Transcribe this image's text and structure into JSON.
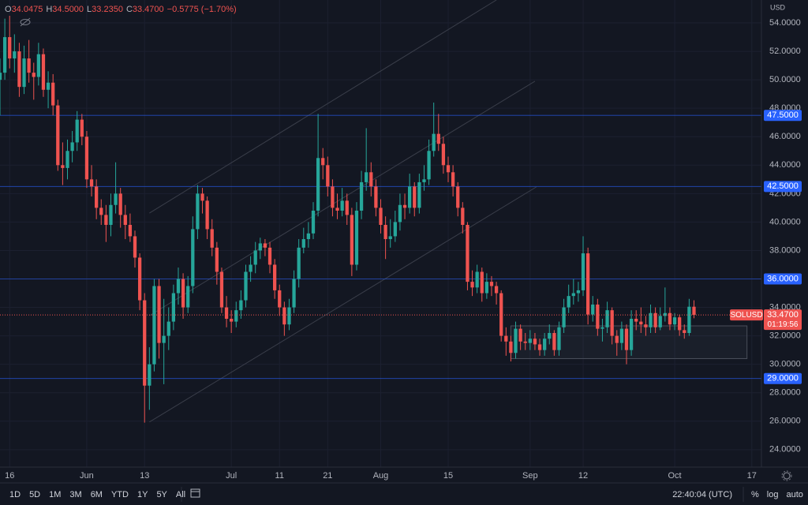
{
  "chart_data": {
    "type": "candlestick",
    "symbol": "SOLUSD",
    "currency": "USD",
    "legend": [
      {
        "key": "O",
        "text": "34.0475"
      },
      {
        "key": "H",
        "text": "34.5000"
      },
      {
        "key": "L",
        "text": "33.2350"
      },
      {
        "key": "C",
        "text": "33.4700"
      }
    ],
    "change_text": "−0.5775 (−1.70%)",
    "up_color": "#26a69a",
    "down_color": "#ef5350",
    "xlim": [
      0,
      158
    ],
    "xticks": [
      {
        "value": 2,
        "label": "16"
      },
      {
        "value": 18,
        "label": "Jun"
      },
      {
        "value": 30,
        "label": "13"
      },
      {
        "value": 48,
        "label": "Jul"
      },
      {
        "value": 58,
        "label": "11"
      },
      {
        "value": 68,
        "label": "21"
      },
      {
        "value": 79,
        "label": "Aug"
      },
      {
        "value": 93,
        "label": "15"
      },
      {
        "value": 110,
        "label": "Sep"
      },
      {
        "value": 121,
        "label": "12"
      },
      {
        "value": 140,
        "label": "Oct"
      },
      {
        "value": 156,
        "label": "17"
      }
    ],
    "ylim": [
      22.77,
      55.61
    ],
    "yticks": [
      {
        "value": 24,
        "label": "24.0000"
      },
      {
        "value": 26,
        "label": "26.0000"
      },
      {
        "value": 28,
        "label": "28.0000"
      },
      {
        "value": 30,
        "label": "30.0000"
      },
      {
        "value": 32,
        "label": "32.0000"
      },
      {
        "value": 34,
        "label": "34.0000"
      },
      {
        "value": 36,
        "label": "36.0000"
      },
      {
        "value": 38,
        "label": "38.0000"
      },
      {
        "value": 40,
        "label": "40.0000"
      },
      {
        "value": 42,
        "label": "42.0000"
      },
      {
        "value": 44,
        "label": "44.0000"
      },
      {
        "value": 46,
        "label": "46.0000"
      },
      {
        "value": 48,
        "label": "48.0000"
      },
      {
        "value": 50,
        "label": "50.0000"
      },
      {
        "value": 52,
        "label": "52.0000"
      },
      {
        "value": 54,
        "label": "54.0000"
      }
    ],
    "grid": true,
    "levels": [
      {
        "value": 47.5,
        "label": "47.5000"
      },
      {
        "value": 42.5,
        "label": "42.5000"
      },
      {
        "value": 36,
        "label": "36.0000"
      },
      {
        "value": 29,
        "label": "29.0000"
      }
    ],
    "last_price": {
      "value": 33.47,
      "label": "33.4700"
    },
    "countdown": "01:19:56",
    "zone": {
      "x": [
        106,
        155
      ],
      "y": [
        30.4,
        32.7
      ]
    },
    "trendlines": [
      {
        "x": [
          31,
          103
        ],
        "y": [
          40.63,
          55.61
        ]
      },
      {
        "x": [
          31,
          111
        ],
        "y": [
          33.42,
          49.9
        ]
      },
      {
        "x": [
          31,
          111.3
        ],
        "y": [
          25.94,
          42.47
        ]
      }
    ],
    "ohlc": [
      [
        50.0,
        51.5,
        47.5,
        50.5
      ],
      [
        50.5,
        54.3,
        50.0,
        53.0
      ],
      [
        53.0,
        54.5,
        50.8,
        51.5
      ],
      [
        51.5,
        53.2,
        50.5,
        52.0
      ],
      [
        52.0,
        52.6,
        48.8,
        49.5
      ],
      [
        49.5,
        52.4,
        49.0,
        51.5
      ],
      [
        51.5,
        52.8,
        49.8,
        50.5
      ],
      [
        50.5,
        51.2,
        48.6,
        50.2
      ],
      [
        50.2,
        52.6,
        49.6,
        51.8
      ],
      [
        51.8,
        52.2,
        48.8,
        49.3
      ],
      [
        49.3,
        50.6,
        48.0,
        49.8
      ],
      [
        49.8,
        50.4,
        47.5,
        48.2
      ],
      [
        48.2,
        48.6,
        43.6,
        44.0
      ],
      [
        44.0,
        45.6,
        42.6,
        43.8
      ],
      [
        43.8,
        45.8,
        43.0,
        45.0
      ],
      [
        45.0,
        46.4,
        44.2,
        45.6
      ],
      [
        45.6,
        47.8,
        45.0,
        47.2
      ],
      [
        47.2,
        47.6,
        45.4,
        46.0
      ],
      [
        46.0,
        46.4,
        42.4,
        43.0
      ],
      [
        43.0,
        44.0,
        41.8,
        42.5
      ],
      [
        42.5,
        43.0,
        40.2,
        41.0
      ],
      [
        41.0,
        41.6,
        39.8,
        40.5
      ],
      [
        40.5,
        41.2,
        38.6,
        39.8
      ],
      [
        39.8,
        42.0,
        39.0,
        41.2
      ],
      [
        41.2,
        44.2,
        40.6,
        42.0
      ],
      [
        42.0,
        42.4,
        39.6,
        40.5
      ],
      [
        40.5,
        41.2,
        38.8,
        39.8
      ],
      [
        39.8,
        40.6,
        38.6,
        39.0
      ],
      [
        39.0,
        39.4,
        36.8,
        37.5
      ],
      [
        37.5,
        37.8,
        33.8,
        34.5
      ],
      [
        34.5,
        35.0,
        25.9,
        28.5
      ],
      [
        28.5,
        31.2,
        26.8,
        30.0
      ],
      [
        30.0,
        36.0,
        29.5,
        35.5
      ],
      [
        35.5,
        36.0,
        30.4,
        31.5
      ],
      [
        31.5,
        34.6,
        28.6,
        32.0
      ],
      [
        32.0,
        34.0,
        31.0,
        33.0
      ],
      [
        33.0,
        35.6,
        32.4,
        35.0
      ],
      [
        35.0,
        36.8,
        34.2,
        36.0
      ],
      [
        36.0,
        36.4,
        33.2,
        34.0
      ],
      [
        34.0,
        36.2,
        33.6,
        35.5
      ],
      [
        35.5,
        40.4,
        35.0,
        39.5
      ],
      [
        39.5,
        42.6,
        38.8,
        42.0
      ],
      [
        42.0,
        42.4,
        40.6,
        41.5
      ],
      [
        41.5,
        41.8,
        38.8,
        39.5
      ],
      [
        39.5,
        40.2,
        37.6,
        38.2
      ],
      [
        38.2,
        38.6,
        35.6,
        36.5
      ],
      [
        36.5,
        36.8,
        33.6,
        34.0
      ],
      [
        34.0,
        34.8,
        32.6,
        33.2
      ],
      [
        33.2,
        33.8,
        32.2,
        33.0
      ],
      [
        33.0,
        34.4,
        32.6,
        33.8
      ],
      [
        33.8,
        35.2,
        33.2,
        34.5
      ],
      [
        34.5,
        37.0,
        34.0,
        36.5
      ],
      [
        36.5,
        37.6,
        35.8,
        37.0
      ],
      [
        37.0,
        38.6,
        36.4,
        38.0
      ],
      [
        38.0,
        38.9,
        37.4,
        38.5
      ],
      [
        38.5,
        38.8,
        37.6,
        38.2
      ],
      [
        38.2,
        38.6,
        36.4,
        37.0
      ],
      [
        37.0,
        37.4,
        34.6,
        35.2
      ],
      [
        35.2,
        35.6,
        33.4,
        34.0
      ],
      [
        34.0,
        34.4,
        32.0,
        32.8
      ],
      [
        32.8,
        34.6,
        32.4,
        34.0
      ],
      [
        34.0,
        36.6,
        33.6,
        36.0
      ],
      [
        36.0,
        38.8,
        35.4,
        38.2
      ],
      [
        38.2,
        39.6,
        37.8,
        38.8
      ],
      [
        38.8,
        40.0,
        38.2,
        39.2
      ],
      [
        39.2,
        41.4,
        38.8,
        40.8
      ],
      [
        40.8,
        47.6,
        40.4,
        44.5
      ],
      [
        44.5,
        45.2,
        43.0,
        44.0
      ],
      [
        44.0,
        44.6,
        41.8,
        42.5
      ],
      [
        42.5,
        43.0,
        40.4,
        41.0
      ],
      [
        41.0,
        42.0,
        40.2,
        40.8
      ],
      [
        40.8,
        42.4,
        40.4,
        41.5
      ],
      [
        41.5,
        42.0,
        39.8,
        40.5
      ],
      [
        40.5,
        41.0,
        36.2,
        37.0
      ],
      [
        37.0,
        41.4,
        36.6,
        40.8
      ],
      [
        40.8,
        43.6,
        40.2,
        42.8
      ],
      [
        42.8,
        46.6,
        42.2,
        43.5
      ],
      [
        43.5,
        44.2,
        41.8,
        42.5
      ],
      [
        42.5,
        43.0,
        40.4,
        41.0
      ],
      [
        41.0,
        41.6,
        39.2,
        39.8
      ],
      [
        39.8,
        40.4,
        37.4,
        38.8
      ],
      [
        38.8,
        40.2,
        38.2,
        39.0
      ],
      [
        39.0,
        40.8,
        38.6,
        40.0
      ],
      [
        40.0,
        42.0,
        39.4,
        41.2
      ],
      [
        41.2,
        42.0,
        40.2,
        41.0
      ],
      [
        41.0,
        43.4,
        40.6,
        42.5
      ],
      [
        42.5,
        42.8,
        40.4,
        41.0
      ],
      [
        41.0,
        43.4,
        40.6,
        42.8
      ],
      [
        42.8,
        44.0,
        42.2,
        43.0
      ],
      [
        43.0,
        45.8,
        42.6,
        45.0
      ],
      [
        45.0,
        48.4,
        44.6,
        46.2
      ],
      [
        46.2,
        47.6,
        45.0,
        45.5
      ],
      [
        45.5,
        46.0,
        43.4,
        44.0
      ],
      [
        44.0,
        44.6,
        42.8,
        43.5
      ],
      [
        43.5,
        44.0,
        41.8,
        42.5
      ],
      [
        42.5,
        42.8,
        40.4,
        41.0
      ],
      [
        41.0,
        41.4,
        39.2,
        39.8
      ],
      [
        39.8,
        40.0,
        35.2,
        35.8
      ],
      [
        35.8,
        36.6,
        34.8,
        35.4
      ],
      [
        35.4,
        37.0,
        35.0,
        36.5
      ],
      [
        36.5,
        36.8,
        34.4,
        35.0
      ],
      [
        35.0,
        36.4,
        34.6,
        35.8
      ],
      [
        35.8,
        36.2,
        34.8,
        35.5
      ],
      [
        35.5,
        35.8,
        34.2,
        35.0
      ],
      [
        35.0,
        35.2,
        31.6,
        32.0
      ],
      [
        32.0,
        32.6,
        30.6,
        31.6
      ],
      [
        31.6,
        32.0,
        30.2,
        30.8
      ],
      [
        30.8,
        33.0,
        30.4,
        32.5
      ],
      [
        32.5,
        32.8,
        31.0,
        31.6
      ],
      [
        31.6,
        32.2,
        31.0,
        31.5
      ],
      [
        31.5,
        32.4,
        31.0,
        31.8
      ],
      [
        31.8,
        32.2,
        31.0,
        31.4
      ],
      [
        31.4,
        31.8,
        30.6,
        31.0
      ],
      [
        31.0,
        32.2,
        30.6,
        31.8
      ],
      [
        31.8,
        32.8,
        31.4,
        32.2
      ],
      [
        32.2,
        32.4,
        30.6,
        31.0
      ],
      [
        31.0,
        33.0,
        30.6,
        32.6
      ],
      [
        32.6,
        34.6,
        32.2,
        34.0
      ],
      [
        34.0,
        35.6,
        33.6,
        34.8
      ],
      [
        34.8,
        36.0,
        34.2,
        35.0
      ],
      [
        35.0,
        35.8,
        34.4,
        35.2
      ],
      [
        35.2,
        39.0,
        34.8,
        37.8
      ],
      [
        37.8,
        38.2,
        32.8,
        33.5
      ],
      [
        33.5,
        34.8,
        33.0,
        34.2
      ],
      [
        34.2,
        34.6,
        32.0,
        32.5
      ],
      [
        32.5,
        33.2,
        31.6,
        32.6
      ],
      [
        32.6,
        34.4,
        32.2,
        33.8
      ],
      [
        33.8,
        34.0,
        31.4,
        32.0
      ],
      [
        32.0,
        32.4,
        30.6,
        31.5
      ],
      [
        31.5,
        33.0,
        31.0,
        32.5
      ],
      [
        32.5,
        32.8,
        30.0,
        31.0
      ],
      [
        31.0,
        33.8,
        30.6,
        33.2
      ],
      [
        33.2,
        33.8,
        32.4,
        33.0
      ],
      [
        33.0,
        34.0,
        32.2,
        32.8
      ],
      [
        32.8,
        33.4,
        32.0,
        32.6
      ],
      [
        32.6,
        34.2,
        32.2,
        33.6
      ],
      [
        33.6,
        34.0,
        32.2,
        32.6
      ],
      [
        32.6,
        34.0,
        32.4,
        33.4
      ],
      [
        33.4,
        35.4,
        33.0,
        33.6
      ],
      [
        33.6,
        34.0,
        32.4,
        32.8
      ],
      [
        32.8,
        33.6,
        32.4,
        33.3
      ],
      [
        33.3,
        33.5,
        32.0,
        32.4
      ],
      [
        32.4,
        32.8,
        31.8,
        32.2
      ],
      [
        32.2,
        34.6,
        32.0,
        34.0475
      ],
      [
        34.0475,
        34.5,
        33.235,
        33.47
      ]
    ],
    "toolbar": {
      "ranges": [
        "1D",
        "5D",
        "1M",
        "3M",
        "6M",
        "YTD",
        "1Y",
        "5Y",
        "All"
      ],
      "time": "22:40:04 (UTC)",
      "options": [
        "%",
        "log",
        "auto"
      ]
    }
  }
}
